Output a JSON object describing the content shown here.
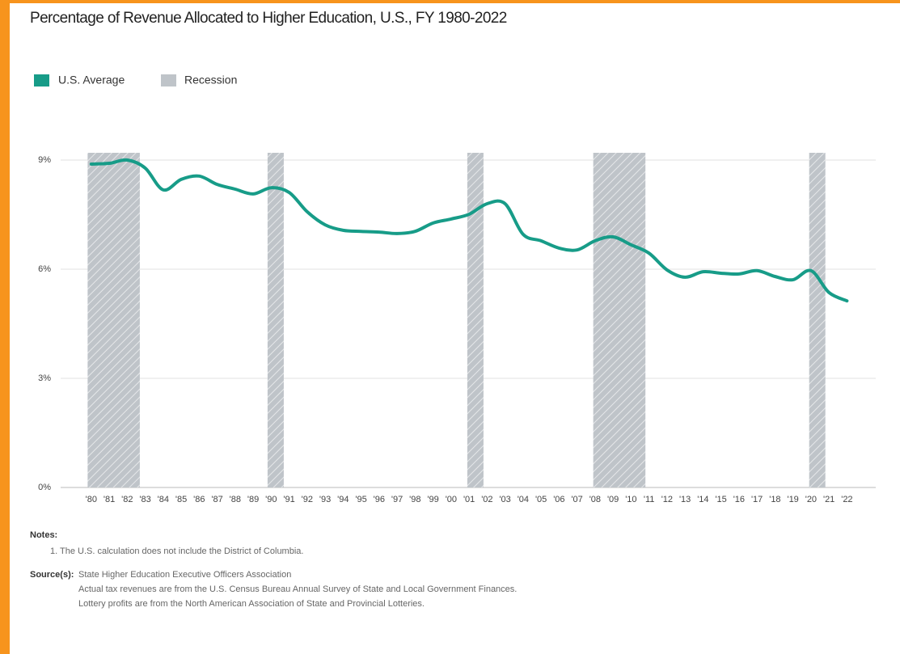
{
  "chart_data": {
    "type": "line",
    "title": "Percentage of Revenue Allocated to Higher Education, U.S., FY 1980-2022",
    "x": [
      1980,
      1981,
      1982,
      1983,
      1984,
      1985,
      1986,
      1987,
      1988,
      1989,
      1990,
      1991,
      1992,
      1993,
      1994,
      1995,
      1996,
      1997,
      1998,
      1999,
      2000,
      2001,
      2002,
      2003,
      2004,
      2005,
      2006,
      2007,
      2008,
      2009,
      2010,
      2011,
      2012,
      2013,
      2014,
      2015,
      2016,
      2017,
      2018,
      2019,
      2020,
      2021,
      2022
    ],
    "series": [
      {
        "name": "U.S. Average",
        "color": "#179c88",
        "values": [
          8.89,
          8.91,
          9.0,
          8.78,
          8.18,
          8.47,
          8.56,
          8.33,
          8.2,
          8.07,
          8.24,
          8.11,
          7.58,
          7.22,
          7.07,
          7.04,
          7.02,
          6.98,
          7.04,
          7.27,
          7.38,
          7.51,
          7.8,
          7.8,
          6.96,
          6.78,
          6.58,
          6.53,
          6.78,
          6.89,
          6.67,
          6.44,
          5.98,
          5.78,
          5.93,
          5.89,
          5.87,
          5.96,
          5.8,
          5.71,
          5.96,
          5.36,
          5.13
        ]
      }
    ],
    "recessions": {
      "name": "Recession",
      "color": "#bfc4c9",
      "spans": [
        [
          1979.8,
          1982.7
        ],
        [
          1989.8,
          1990.7
        ],
        [
          2000.9,
          2001.8
        ],
        [
          2007.9,
          2010.8
        ],
        [
          2019.9,
          2020.8
        ]
      ]
    },
    "xlim": [
      1978.3,
      2023.6
    ],
    "xticks": [
      {
        "value": 1980,
        "label": "'80"
      },
      {
        "value": 1981,
        "label": "'81"
      },
      {
        "value": 1982,
        "label": "'82"
      },
      {
        "value": 1983,
        "label": "'83"
      },
      {
        "value": 1984,
        "label": "'84"
      },
      {
        "value": 1985,
        "label": "'85"
      },
      {
        "value": 1986,
        "label": "'86"
      },
      {
        "value": 1987,
        "label": "'87"
      },
      {
        "value": 1988,
        "label": "'88"
      },
      {
        "value": 1989,
        "label": "'89"
      },
      {
        "value": 1990,
        "label": "'90"
      },
      {
        "value": 1991,
        "label": "'91"
      },
      {
        "value": 1992,
        "label": "'92"
      },
      {
        "value": 1993,
        "label": "'93"
      },
      {
        "value": 1994,
        "label": "'94"
      },
      {
        "value": 1995,
        "label": "'95"
      },
      {
        "value": 1996,
        "label": "'96"
      },
      {
        "value": 1997,
        "label": "'97"
      },
      {
        "value": 1998,
        "label": "'98"
      },
      {
        "value": 1999,
        "label": "'99"
      },
      {
        "value": 2000,
        "label": "'00"
      },
      {
        "value": 2001,
        "label": "'01"
      },
      {
        "value": 2002,
        "label": "'02"
      },
      {
        "value": 2003,
        "label": "'03"
      },
      {
        "value": 2004,
        "label": "'04"
      },
      {
        "value": 2005,
        "label": "'05"
      },
      {
        "value": 2006,
        "label": "'06"
      },
      {
        "value": 2007,
        "label": "'07"
      },
      {
        "value": 2008,
        "label": "'08"
      },
      {
        "value": 2009,
        "label": "'09"
      },
      {
        "value": 2010,
        "label": "'10"
      },
      {
        "value": 2011,
        "label": "'11"
      },
      {
        "value": 2012,
        "label": "'12"
      },
      {
        "value": 2013,
        "label": "'13"
      },
      {
        "value": 2014,
        "label": "'14"
      },
      {
        "value": 2015,
        "label": "'15"
      },
      {
        "value": 2016,
        "label": "'16"
      },
      {
        "value": 2017,
        "label": "'17"
      },
      {
        "value": 2018,
        "label": "'18"
      },
      {
        "value": 2019,
        "label": "'19"
      },
      {
        "value": 2020,
        "label": "'20"
      },
      {
        "value": 2021,
        "label": "'21"
      },
      {
        "value": 2022,
        "label": "'22"
      }
    ],
    "ylim": [
      0,
      9.2
    ],
    "yticks": [
      {
        "value": 0,
        "label": "0%"
      },
      {
        "value": 3,
        "label": "3%"
      },
      {
        "value": 6,
        "label": "6%"
      },
      {
        "value": 9,
        "label": "9%"
      }
    ],
    "grid": true,
    "notes_heading": "Notes:",
    "notes": [
      "1. The U.S. calculation does not include the District of Columbia."
    ],
    "source_heading": "Source(s):",
    "sources": [
      "State Higher Education Executive Officers Association",
      "Actual tax revenues are from the U.S. Census Bureau Annual Survey of State and Local Government Finances.",
      "Lottery profits are from the North American Association of State and Provincial Lotteries."
    ]
  }
}
